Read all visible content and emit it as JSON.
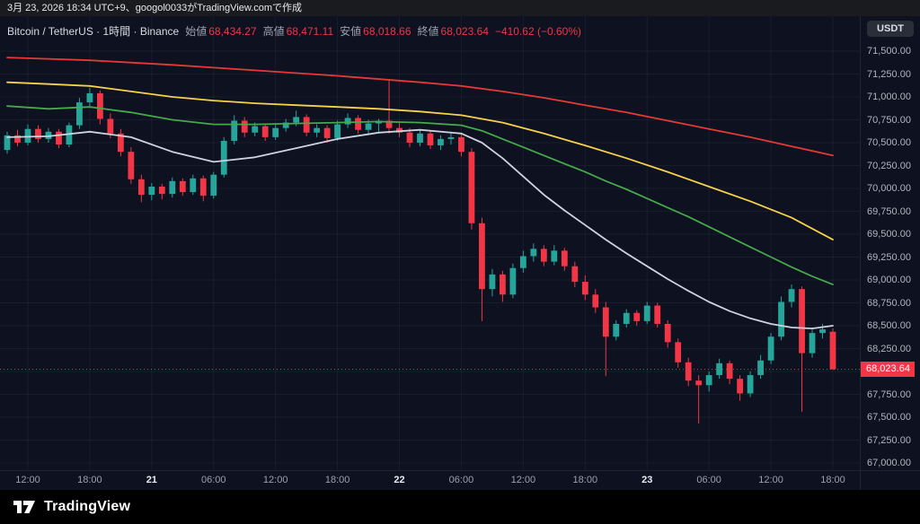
{
  "os_bar": {
    "text": "3月 23, 2026 18:34 UTC+9、googol0033がTradingView.comで作成"
  },
  "header": {
    "title": "Bitcoin / TetherUS · 1時間 · Binance",
    "ohlc": [
      {
        "label": "始値",
        "value": "68,434.27"
      },
      {
        "label": "高値",
        "value": "68,471.11"
      },
      {
        "label": "安値",
        "value": "68,018.66"
      },
      {
        "label": "終値",
        "value": "68,023.64"
      }
    ],
    "change": "−410.62 (−0.60%)",
    "currency_button": "USDT"
  },
  "footer": {
    "brand": "TradingView"
  },
  "chart_data": {
    "type": "candlestick",
    "title": "Bitcoin / TetherUS 1時間 Binance",
    "colors": {
      "up": "#26a69a",
      "down": "#f23645",
      "grid": "rgba(130,140,170,0.10)",
      "axis_line": "#1f2433",
      "background": "#0d1120"
    },
    "price_axis": {
      "min": 67000,
      "max": 71500,
      "step": 250,
      "labels": [
        "71,500.00",
        "71,250.00",
        "71,000.00",
        "70,750.00",
        "70,500.00",
        "70,250.00",
        "70,000.00",
        "69,750.00",
        "69,500.00",
        "69,250.00",
        "69,000.00",
        "68,750.00",
        "68,500.00",
        "68,250.00",
        "68,000.00",
        "67,750.00",
        "67,500.00",
        "67,250.00",
        "67,000.00"
      ]
    },
    "time_axis": {
      "ticks": [
        {
          "label": "12:00",
          "i": 2
        },
        {
          "label": "18:00",
          "i": 8
        },
        {
          "label": "21",
          "i": 14,
          "major": true
        },
        {
          "label": "06:00",
          "i": 20
        },
        {
          "label": "12:00",
          "i": 26
        },
        {
          "label": "18:00",
          "i": 32
        },
        {
          "label": "22",
          "i": 38,
          "major": true
        },
        {
          "label": "06:00",
          "i": 44
        },
        {
          "label": "12:00",
          "i": 50
        },
        {
          "label": "18:00",
          "i": 56
        },
        {
          "label": "23",
          "i": 62,
          "major": true
        },
        {
          "label": "06:00",
          "i": 68
        },
        {
          "label": "12:00",
          "i": 74
        },
        {
          "label": "18:00",
          "i": 80
        }
      ]
    },
    "candles": [
      [
        70420,
        70620,
        70380,
        70580
      ],
      [
        70580,
        70640,
        70460,
        70500
      ],
      [
        70500,
        70700,
        70470,
        70650
      ],
      [
        70650,
        70690,
        70500,
        70540
      ],
      [
        70540,
        70660,
        70500,
        70620
      ],
      [
        70620,
        70650,
        70440,
        70480
      ],
      [
        70480,
        70720,
        70450,
        70690
      ],
      [
        70690,
        70990,
        70650,
        70940
      ],
      [
        70940,
        71100,
        70880,
        71040
      ],
      [
        71040,
        71070,
        70700,
        70760
      ],
      [
        70760,
        70820,
        70550,
        70600
      ],
      [
        70600,
        70650,
        70350,
        70400
      ],
      [
        70400,
        70450,
        70050,
        70100
      ],
      [
        70100,
        70150,
        69850,
        69930
      ],
      [
        69930,
        70060,
        69870,
        70020
      ],
      [
        70020,
        70050,
        69880,
        69940
      ],
      [
        69940,
        70120,
        69900,
        70080
      ],
      [
        70080,
        70110,
        69920,
        69960
      ],
      [
        69960,
        70150,
        69930,
        70110
      ],
      [
        70110,
        70140,
        69860,
        69920
      ],
      [
        69920,
        70180,
        69890,
        70150
      ],
      [
        70150,
        70560,
        70120,
        70520
      ],
      [
        70520,
        70800,
        70480,
        70740
      ],
      [
        70740,
        70780,
        70560,
        70610
      ],
      [
        70610,
        70720,
        70570,
        70680
      ],
      [
        70680,
        70710,
        70520,
        70560
      ],
      [
        70560,
        70700,
        70530,
        70660
      ],
      [
        70660,
        70760,
        70620,
        70720
      ],
      [
        70720,
        70850,
        70680,
        70780
      ],
      [
        70780,
        70810,
        70570,
        70610
      ],
      [
        70610,
        70700,
        70560,
        70660
      ],
      [
        70660,
        70690,
        70500,
        70550
      ],
      [
        70550,
        70740,
        70520,
        70700
      ],
      [
        70700,
        70820,
        70660,
        70770
      ],
      [
        70770,
        70800,
        70600,
        70640
      ],
      [
        70640,
        70750,
        70600,
        70710
      ],
      [
        70710,
        70760,
        70620,
        70740
      ],
      [
        70740,
        71180,
        70600,
        70660
      ],
      [
        70660,
        70720,
        70560,
        70610
      ],
      [
        70610,
        70660,
        70450,
        70500
      ],
      [
        70500,
        70640,
        70460,
        70600
      ],
      [
        70600,
        70630,
        70430,
        70470
      ],
      [
        70470,
        70580,
        70420,
        70540
      ],
      [
        70540,
        70620,
        70480,
        70560
      ],
      [
        70560,
        70590,
        70350,
        70400
      ],
      [
        70400,
        70440,
        69550,
        69620
      ],
      [
        69620,
        69680,
        68550,
        68900
      ],
      [
        68900,
        69120,
        68820,
        69060
      ],
      [
        69060,
        69100,
        68760,
        68840
      ],
      [
        68840,
        69180,
        68800,
        69130
      ],
      [
        69130,
        69320,
        69080,
        69260
      ],
      [
        69260,
        69400,
        69200,
        69340
      ],
      [
        69340,
        69380,
        69150,
        69200
      ],
      [
        69200,
        69380,
        69160,
        69320
      ],
      [
        69320,
        69350,
        69100,
        69150
      ],
      [
        69150,
        69200,
        68920,
        68980
      ],
      [
        68980,
        69050,
        68780,
        68840
      ],
      [
        68840,
        68900,
        68640,
        68700
      ],
      [
        68700,
        68760,
        67950,
        68380
      ],
      [
        68380,
        68560,
        68340,
        68520
      ],
      [
        68520,
        68680,
        68480,
        68640
      ],
      [
        68640,
        68670,
        68500,
        68550
      ],
      [
        68550,
        68760,
        68520,
        68720
      ],
      [
        68720,
        68750,
        68480,
        68520
      ],
      [
        68520,
        68560,
        68260,
        68320
      ],
      [
        68320,
        68360,
        68040,
        68100
      ],
      [
        68100,
        68150,
        67840,
        67900
      ],
      [
        67900,
        67960,
        67430,
        67850
      ],
      [
        67850,
        68000,
        67780,
        67960
      ],
      [
        67960,
        68140,
        67920,
        68090
      ],
      [
        68090,
        68120,
        67860,
        67920
      ],
      [
        67920,
        67960,
        67680,
        67760
      ],
      [
        67760,
        68000,
        67720,
        67960
      ],
      [
        67960,
        68180,
        67920,
        68120
      ],
      [
        68120,
        68420,
        68080,
        68380
      ],
      [
        68380,
        68820,
        68340,
        68760
      ],
      [
        68760,
        68950,
        68700,
        68900
      ],
      [
        68900,
        68930,
        67560,
        68200
      ],
      [
        68200,
        68480,
        68150,
        68420
      ],
      [
        68420,
        68520,
        68360,
        68460
      ],
      [
        68434.27,
        68471.11,
        68018.66,
        68023.64
      ]
    ],
    "ma_lines": [
      {
        "name": "ma-red",
        "color": "#e53935",
        "points": [
          [
            0,
            71430
          ],
          [
            8,
            71400
          ],
          [
            16,
            71350
          ],
          [
            24,
            71290
          ],
          [
            32,
            71230
          ],
          [
            40,
            71160
          ],
          [
            44,
            71120
          ],
          [
            48,
            71060
          ],
          [
            52,
            70990
          ],
          [
            56,
            70910
          ],
          [
            60,
            70830
          ],
          [
            64,
            70740
          ],
          [
            68,
            70650
          ],
          [
            72,
            70560
          ],
          [
            76,
            70460
          ],
          [
            80,
            70360
          ]
        ]
      },
      {
        "name": "ma-yellow",
        "color": "#f7d249",
        "points": [
          [
            0,
            71160
          ],
          [
            4,
            71140
          ],
          [
            8,
            71120
          ],
          [
            12,
            71060
          ],
          [
            16,
            71000
          ],
          [
            20,
            70960
          ],
          [
            24,
            70930
          ],
          [
            28,
            70910
          ],
          [
            32,
            70890
          ],
          [
            36,
            70870
          ],
          [
            40,
            70840
          ],
          [
            44,
            70800
          ],
          [
            48,
            70720
          ],
          [
            52,
            70600
          ],
          [
            56,
            70470
          ],
          [
            60,
            70330
          ],
          [
            64,
            70180
          ],
          [
            68,
            70020
          ],
          [
            72,
            69860
          ],
          [
            76,
            69680
          ],
          [
            80,
            69440
          ]
        ]
      },
      {
        "name": "ma-green",
        "color": "#46a84b",
        "points": [
          [
            0,
            70900
          ],
          [
            4,
            70870
          ],
          [
            8,
            70890
          ],
          [
            12,
            70830
          ],
          [
            16,
            70750
          ],
          [
            20,
            70700
          ],
          [
            24,
            70700
          ],
          [
            28,
            70710
          ],
          [
            32,
            70720
          ],
          [
            36,
            70730
          ],
          [
            40,
            70720
          ],
          [
            44,
            70690
          ],
          [
            46,
            70630
          ],
          [
            48,
            70540
          ],
          [
            50,
            70450
          ],
          [
            52,
            70360
          ],
          [
            54,
            70270
          ],
          [
            56,
            70180
          ],
          [
            58,
            70080
          ],
          [
            60,
            69990
          ],
          [
            62,
            69890
          ],
          [
            64,
            69790
          ],
          [
            66,
            69690
          ],
          [
            68,
            69580
          ],
          [
            70,
            69470
          ],
          [
            72,
            69360
          ],
          [
            74,
            69250
          ],
          [
            76,
            69140
          ],
          [
            78,
            69040
          ],
          [
            80,
            68950
          ]
        ]
      },
      {
        "name": "ma-white",
        "color": "#cfd3de",
        "points": [
          [
            0,
            70560
          ],
          [
            4,
            70570
          ],
          [
            8,
            70620
          ],
          [
            12,
            70560
          ],
          [
            16,
            70400
          ],
          [
            20,
            70290
          ],
          [
            24,
            70340
          ],
          [
            28,
            70440
          ],
          [
            32,
            70540
          ],
          [
            36,
            70610
          ],
          [
            40,
            70640
          ],
          [
            44,
            70600
          ],
          [
            46,
            70500
          ],
          [
            48,
            70330
          ],
          [
            50,
            70130
          ],
          [
            52,
            69930
          ],
          [
            54,
            69760
          ],
          [
            56,
            69600
          ],
          [
            58,
            69440
          ],
          [
            60,
            69290
          ],
          [
            62,
            69150
          ],
          [
            64,
            69010
          ],
          [
            66,
            68880
          ],
          [
            68,
            68760
          ],
          [
            70,
            68660
          ],
          [
            72,
            68580
          ],
          [
            74,
            68520
          ],
          [
            76,
            68480
          ],
          [
            78,
            68470
          ],
          [
            80,
            68500
          ]
        ]
      }
    ],
    "last_price": {
      "label": "68,023.64",
      "value": 68023.64,
      "color": "#f23645"
    }
  }
}
